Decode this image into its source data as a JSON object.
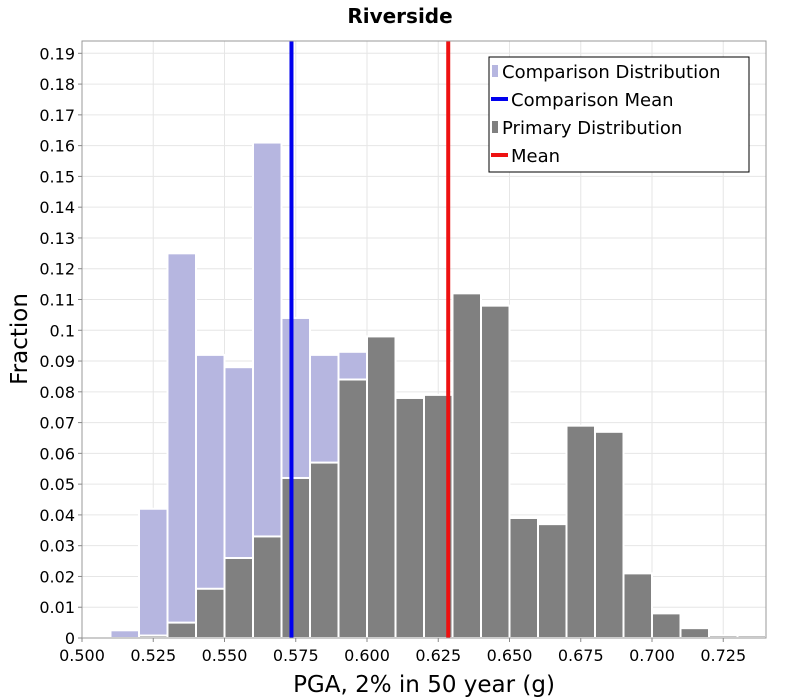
{
  "chart_data": {
    "type": "bar",
    "title": "Riverside",
    "xlabel": "PGA, 2% in 50 year (g)",
    "ylabel": "Fraction",
    "xlim": [
      0.5,
      0.74
    ],
    "ylim": [
      0,
      0.194
    ],
    "x_ticks": [
      "0.500",
      "0.525",
      "0.550",
      "0.575",
      "0.600",
      "0.625",
      "0.650",
      "0.675",
      "0.700",
      "0.725"
    ],
    "y_ticks": [
      "0",
      "0.01",
      "0.02",
      "0.03",
      "0.04",
      "0.05",
      "0.06",
      "0.07",
      "0.08",
      "0.09",
      "0.1",
      "0.11",
      "0.12",
      "0.13",
      "0.14",
      "0.15",
      "0.16",
      "0.17",
      "0.18",
      "0.19"
    ],
    "bin_width": 0.01,
    "grid": true,
    "legend_position": "top-right",
    "series": [
      {
        "name": "Comparison Distribution",
        "color": "#b6b6e0",
        "bin_centers": [
          0.505,
          0.515,
          0.525,
          0.535,
          0.545,
          0.555,
          0.565,
          0.575,
          0.585,
          0.595,
          0.605,
          0.615
        ],
        "values": [
          0.0,
          0.0025,
          0.042,
          0.125,
          0.092,
          0.088,
          0.161,
          0.104,
          0.092,
          0.093,
          0.065,
          0.015
        ]
      },
      {
        "name": "Primary Distribution",
        "color": "#808080",
        "bin_centers": [
          0.505,
          0.515,
          0.525,
          0.535,
          0.545,
          0.555,
          0.565,
          0.575,
          0.585,
          0.595,
          0.605,
          0.615,
          0.625,
          0.635,
          0.645,
          0.655,
          0.665,
          0.675,
          0.685,
          0.695,
          0.705,
          0.715,
          0.725,
          0.735
        ],
        "values": [
          0.0,
          0.0,
          0.0008,
          0.005,
          0.016,
          0.026,
          0.033,
          0.052,
          0.057,
          0.084,
          0.098,
          0.078,
          0.079,
          0.112,
          0.108,
          0.039,
          0.037,
          0.069,
          0.067,
          0.021,
          0.008,
          0.0032,
          0.0008,
          0.0008
        ]
      }
    ],
    "lines": [
      {
        "name": "Comparison Mean",
        "x": 0.5735,
        "color": "#0000ee"
      },
      {
        "name": "Mean",
        "x": 0.6285,
        "color": "#ee1111"
      }
    ],
    "legend": [
      {
        "label": "Comparison Distribution",
        "kind": "bar",
        "color": "#b6b6e0"
      },
      {
        "label": "Comparison Mean",
        "kind": "line",
        "color": "#0000ee"
      },
      {
        "label": "Primary Distribution",
        "kind": "bar",
        "color": "#808080"
      },
      {
        "label": "Mean",
        "kind": "line",
        "color": "#ee1111"
      }
    ]
  }
}
